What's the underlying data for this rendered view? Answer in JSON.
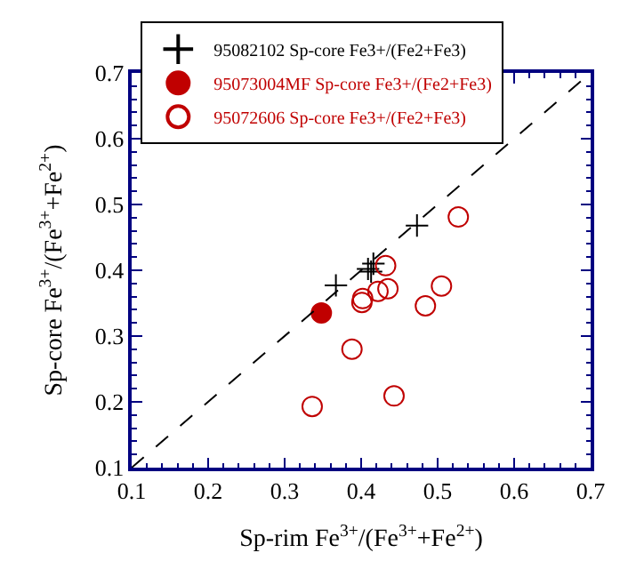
{
  "chart_data": {
    "type": "scatter",
    "xlabel": "Sp-rim Fe$^{3+}$/(Fe$^{3+}$+Fe$^{2+}$)",
    "ylabel": "Sp-core Fe$^{3+}$/(Fe$^{3+}$+Fe$^{2+}$)",
    "xlim": [
      0.1,
      0.7
    ],
    "ylim": [
      0.1,
      0.7
    ],
    "xticks": [
      0.1,
      0.2,
      0.3,
      0.4,
      0.5,
      0.6,
      0.7
    ],
    "yticks": [
      0.1,
      0.2,
      0.3,
      0.4,
      0.5,
      0.6,
      0.7
    ],
    "legend": "top",
    "series": [
      {
        "name": "95082102 Sp-core Fe3+/(Fe2+Fe3)",
        "color": "#000000",
        "marker": "cross",
        "x": [
          0.367,
          0.409,
          0.413,
          0.416,
          0.473
        ],
        "values": [
          0.377,
          0.402,
          0.398,
          0.41,
          0.468
        ]
      },
      {
        "name": "95073004MF Sp-core Fe3+/(Fe2+Fe3)",
        "color": "#c00000",
        "marker": "circle",
        "x": [
          0.348
        ],
        "values": [
          0.335
        ]
      },
      {
        "name": "95072606 Sp-core Fe3+/(Fe2+Fe3)",
        "color": "#c00000",
        "marker": "circle-open",
        "x": [
          0.527,
          0.432,
          0.435,
          0.422,
          0.402,
          0.401,
          0.505,
          0.484,
          0.388,
          0.443,
          0.336
        ],
        "values": [
          0.481,
          0.407,
          0.372,
          0.368,
          0.357,
          0.351,
          0.376,
          0.346,
          0.28,
          0.209,
          0.193
        ]
      },
      {
        "type": "line",
        "color": "#000000",
        "line_style": "dashed",
        "x": [
          0.1,
          0.7
        ],
        "values": [
          0.1,
          0.7
        ]
      }
    ]
  }
}
